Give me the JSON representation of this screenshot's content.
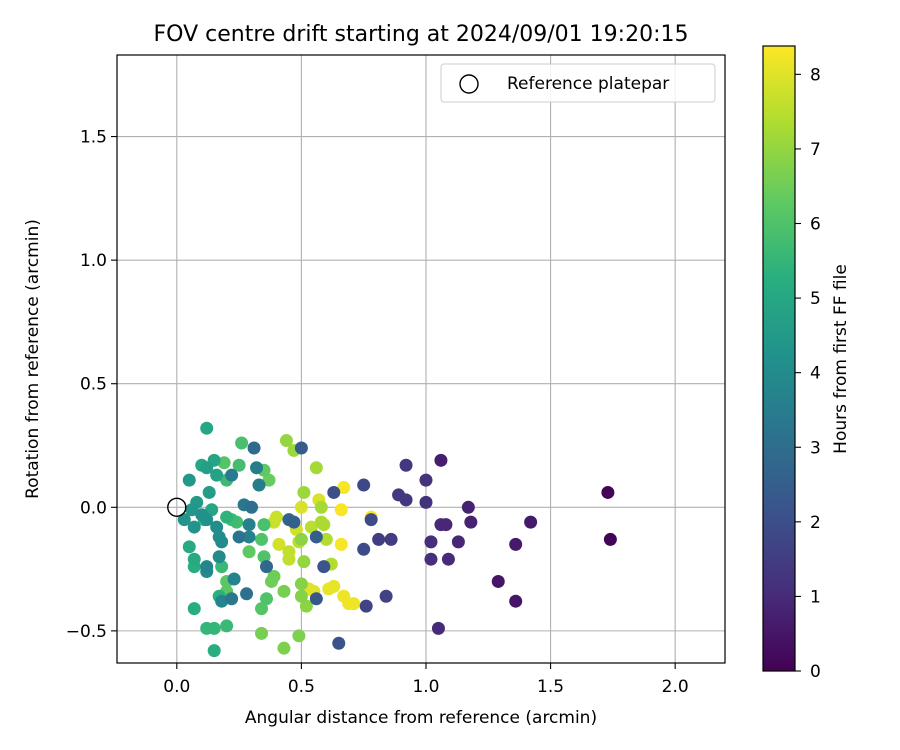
{
  "chart_data": {
    "type": "scatter",
    "title": "FOV centre drift starting at 2024/09/01 19:20:15",
    "xlabel": "Angular distance from reference (arcmin)",
    "ylabel": "Rotation from reference (arcmin)",
    "xlim": [
      -0.24,
      2.2
    ],
    "ylim": [
      -0.63,
      1.83
    ],
    "xticks": [
      0.0,
      0.5,
      1.0,
      1.5,
      2.0
    ],
    "xtick_labels": [
      "0.0",
      "0.5",
      "1.0",
      "1.5",
      "2.0"
    ],
    "yticks": [
      -0.5,
      0.0,
      0.5,
      1.0,
      1.5
    ],
    "ytick_labels": [
      "−0.5",
      "0.0",
      "0.5",
      "1.0",
      "1.5"
    ],
    "grid": true,
    "legend": {
      "position": "top-right",
      "entries": [
        "Reference platepar"
      ]
    },
    "reference_point": {
      "label": "Reference platepar",
      "x": 0.0,
      "y": 0.0,
      "marker": "open-circle"
    },
    "colorbar": {
      "label": "Hours from first FF file",
      "colormap": "viridis",
      "range": [
        0,
        8.38
      ],
      "ticks": [
        0,
        1,
        2,
        3,
        4,
        5,
        6,
        7,
        8
      ],
      "tick_labels": [
        "0",
        "1",
        "2",
        "3",
        "4",
        "5",
        "6",
        "7",
        "8"
      ]
    },
    "points": [
      {
        "x": 1.73,
        "y": 0.06,
        "h": 0.1
      },
      {
        "x": 1.74,
        "y": -0.13,
        "h": 0.1
      },
      {
        "x": 1.29,
        "y": -0.3,
        "h": 0.5
      },
      {
        "x": 1.36,
        "y": -0.38,
        "h": 0.5
      },
      {
        "x": 1.42,
        "y": -0.06,
        "h": 0.6
      },
      {
        "x": 1.36,
        "y": -0.15,
        "h": 0.6
      },
      {
        "x": 1.06,
        "y": 0.19,
        "h": 0.7
      },
      {
        "x": 1.17,
        "y": 0.0,
        "h": 0.8
      },
      {
        "x": 1.18,
        "y": -0.06,
        "h": 0.8
      },
      {
        "x": 1.13,
        "y": -0.14,
        "h": 0.9
      },
      {
        "x": 1.08,
        "y": -0.07,
        "h": 0.9
      },
      {
        "x": 1.06,
        "y": -0.07,
        "h": 1.0
      },
      {
        "x": 1.09,
        "y": -0.21,
        "h": 1.0
      },
      {
        "x": 1.05,
        "y": -0.49,
        "h": 1.0
      },
      {
        "x": 1.02,
        "y": -0.21,
        "h": 1.1
      },
      {
        "x": 1.02,
        "y": -0.14,
        "h": 1.1
      },
      {
        "x": 1.0,
        "y": 0.02,
        "h": 1.2
      },
      {
        "x": 1.0,
        "y": 0.11,
        "h": 1.2
      },
      {
        "x": 0.92,
        "y": 0.17,
        "h": 1.3
      },
      {
        "x": 0.92,
        "y": 0.03,
        "h": 1.3
      },
      {
        "x": 0.89,
        "y": 0.05,
        "h": 1.4
      },
      {
        "x": 0.86,
        "y": -0.13,
        "h": 1.5
      },
      {
        "x": 0.81,
        "y": -0.13,
        "h": 1.5
      },
      {
        "x": 0.84,
        "y": -0.36,
        "h": 1.6
      },
      {
        "x": 0.76,
        "y": -0.4,
        "h": 1.7
      },
      {
        "x": 0.75,
        "y": 0.09,
        "h": 1.8
      },
      {
        "x": 0.75,
        "y": -0.17,
        "h": 1.9
      },
      {
        "x": 0.78,
        "y": -0.05,
        "h": 1.9
      },
      {
        "x": 0.63,
        "y": 0.06,
        "h": 2.0
      },
      {
        "x": 0.65,
        "y": -0.55,
        "h": 2.1
      },
      {
        "x": 0.59,
        "y": -0.24,
        "h": 2.2
      },
      {
        "x": 0.56,
        "y": -0.37,
        "h": 2.3
      },
      {
        "x": 0.5,
        "y": 0.24,
        "h": 2.4
      },
      {
        "x": 0.56,
        "y": -0.12,
        "h": 2.5
      },
      {
        "x": 0.47,
        "y": -0.06,
        "h": 2.6
      },
      {
        "x": 0.45,
        "y": -0.05,
        "h": 2.7
      },
      {
        "x": 0.36,
        "y": -0.24,
        "h": 2.8
      },
      {
        "x": 0.31,
        "y": 0.24,
        "h": 2.9
      },
      {
        "x": 0.3,
        "y": 0.0,
        "h": 3.0
      },
      {
        "x": 0.28,
        "y": -0.35,
        "h": 3.1
      },
      {
        "x": 0.25,
        "y": -0.12,
        "h": 3.2
      },
      {
        "x": 0.22,
        "y": -0.37,
        "h": 3.3
      },
      {
        "x": 0.27,
        "y": 0.01,
        "h": 3.3
      },
      {
        "x": 0.22,
        "y": 0.13,
        "h": 3.4
      },
      {
        "x": 0.32,
        "y": 0.16,
        "h": 3.5
      },
      {
        "x": 0.33,
        "y": 0.09,
        "h": 3.5
      },
      {
        "x": 0.29,
        "y": -0.07,
        "h": 3.6
      },
      {
        "x": 0.29,
        "y": -0.12,
        "h": 3.6
      },
      {
        "x": 0.23,
        "y": -0.29,
        "h": 3.7
      },
      {
        "x": 0.18,
        "y": -0.38,
        "h": 3.8
      },
      {
        "x": 0.12,
        "y": -0.24,
        "h": 3.8
      },
      {
        "x": 0.12,
        "y": -0.26,
        "h": 3.9
      },
      {
        "x": 0.17,
        "y": -0.2,
        "h": 4.0
      },
      {
        "x": 0.18,
        "y": -0.14,
        "h": 4.0
      },
      {
        "x": 0.16,
        "y": -0.08,
        "h": 4.1
      },
      {
        "x": 0.17,
        "y": -0.12,
        "h": 4.1
      },
      {
        "x": 0.1,
        "y": -0.03,
        "h": 4.2
      },
      {
        "x": 0.12,
        "y": -0.05,
        "h": 4.2
      },
      {
        "x": 0.03,
        "y": -0.05,
        "h": 4.3
      },
      {
        "x": 0.07,
        "y": -0.08,
        "h": 4.3
      },
      {
        "x": 0.06,
        "y": -0.01,
        "h": 4.4
      },
      {
        "x": 0.05,
        "y": 0.11,
        "h": 4.4
      },
      {
        "x": 0.08,
        "y": 0.02,
        "h": 4.5
      },
      {
        "x": 0.13,
        "y": 0.06,
        "h": 4.6
      },
      {
        "x": 0.12,
        "y": 0.16,
        "h": 4.7
      },
      {
        "x": 0.16,
        "y": 0.13,
        "h": 4.8
      },
      {
        "x": 0.15,
        "y": 0.19,
        "h": 4.9
      },
      {
        "x": 0.14,
        "y": -0.01,
        "h": 4.9
      },
      {
        "x": 0.12,
        "y": 0.32,
        "h": 5.0
      },
      {
        "x": 0.1,
        "y": 0.17,
        "h": 5.0
      },
      {
        "x": 0.05,
        "y": -0.16,
        "h": 5.1
      },
      {
        "x": 0.07,
        "y": -0.21,
        "h": 5.1
      },
      {
        "x": 0.07,
        "y": -0.24,
        "h": 5.2
      },
      {
        "x": 0.07,
        "y": -0.41,
        "h": 5.2
      },
      {
        "x": 0.15,
        "y": -0.58,
        "h": 5.2
      },
      {
        "x": 0.17,
        "y": -0.36,
        "h": 5.3
      },
      {
        "x": 0.11,
        "y": -0.05,
        "h": 5.3
      },
      {
        "x": 0.2,
        "y": -0.04,
        "h": 5.4
      },
      {
        "x": 0.15,
        "y": -0.49,
        "h": 5.5
      },
      {
        "x": 0.12,
        "y": -0.49,
        "h": 5.5
      },
      {
        "x": 0.2,
        "y": -0.48,
        "h": 5.6
      },
      {
        "x": 0.18,
        "y": -0.24,
        "h": 5.6
      },
      {
        "x": 0.2,
        "y": 0.11,
        "h": 5.7
      },
      {
        "x": 0.22,
        "y": -0.05,
        "h": 5.7
      },
      {
        "x": 0.24,
        "y": -0.06,
        "h": 5.8
      },
      {
        "x": 0.25,
        "y": 0.17,
        "h": 5.8
      },
      {
        "x": 0.26,
        "y": 0.26,
        "h": 5.9
      },
      {
        "x": 0.35,
        "y": -0.07,
        "h": 5.9
      },
      {
        "x": 0.34,
        "y": -0.13,
        "h": 6.0
      },
      {
        "x": 0.35,
        "y": -0.2,
        "h": 6.0
      },
      {
        "x": 0.36,
        "y": -0.37,
        "h": 6.0
      },
      {
        "x": 0.34,
        "y": -0.41,
        "h": 6.1
      },
      {
        "x": 0.19,
        "y": 0.18,
        "h": 6.1
      },
      {
        "x": 0.2,
        "y": -0.3,
        "h": 6.2
      },
      {
        "x": 0.2,
        "y": -0.34,
        "h": 6.2
      },
      {
        "x": 0.29,
        "y": -0.18,
        "h": 6.3
      },
      {
        "x": 0.35,
        "y": 0.15,
        "h": 6.3
      },
      {
        "x": 0.37,
        "y": 0.11,
        "h": 6.4
      },
      {
        "x": 0.33,
        "y": 0.09,
        "h": 6.4
      },
      {
        "x": 0.38,
        "y": -0.3,
        "h": 6.5
      },
      {
        "x": 0.39,
        "y": -0.28,
        "h": 6.5
      },
      {
        "x": 0.43,
        "y": -0.34,
        "h": 6.6
      },
      {
        "x": 0.34,
        "y": -0.51,
        "h": 6.6
      },
      {
        "x": 0.43,
        "y": -0.57,
        "h": 6.7
      },
      {
        "x": 0.49,
        "y": -0.52,
        "h": 6.7
      },
      {
        "x": 0.5,
        "y": -0.31,
        "h": 6.8
      },
      {
        "x": 0.5,
        "y": -0.36,
        "h": 6.8
      },
      {
        "x": 0.52,
        "y": -0.4,
        "h": 6.9
      },
      {
        "x": 0.5,
        "y": -0.13,
        "h": 6.9
      },
      {
        "x": 0.51,
        "y": -0.22,
        "h": 7.0
      },
      {
        "x": 0.44,
        "y": 0.27,
        "h": 7.0
      },
      {
        "x": 0.47,
        "y": 0.23,
        "h": 7.1
      },
      {
        "x": 0.51,
        "y": 0.06,
        "h": 7.1
      },
      {
        "x": 0.56,
        "y": 0.16,
        "h": 7.2
      },
      {
        "x": 0.58,
        "y": 0.0,
        "h": 7.2
      },
      {
        "x": 0.58,
        "y": -0.06,
        "h": 7.3
      },
      {
        "x": 0.59,
        "y": -0.07,
        "h": 7.3
      },
      {
        "x": 0.6,
        "y": -0.13,
        "h": 7.4
      },
      {
        "x": 0.62,
        "y": -0.23,
        "h": 7.4
      },
      {
        "x": 0.54,
        "y": -0.08,
        "h": 7.5
      },
      {
        "x": 0.49,
        "y": -0.14,
        "h": 7.5
      },
      {
        "x": 0.45,
        "y": -0.18,
        "h": 7.6
      },
      {
        "x": 0.45,
        "y": -0.21,
        "h": 7.6
      },
      {
        "x": 0.4,
        "y": -0.04,
        "h": 7.7
      },
      {
        "x": 0.39,
        "y": -0.06,
        "h": 7.7
      },
      {
        "x": 0.41,
        "y": -0.15,
        "h": 7.8
      },
      {
        "x": 0.48,
        "y": -0.09,
        "h": 7.8
      },
      {
        "x": 0.5,
        "y": 0.0,
        "h": 7.9
      },
      {
        "x": 0.57,
        "y": 0.03,
        "h": 7.9
      },
      {
        "x": 0.53,
        "y": -0.33,
        "h": 8.0
      },
      {
        "x": 0.55,
        "y": -0.34,
        "h": 8.0
      },
      {
        "x": 0.61,
        "y": -0.33,
        "h": 8.1
      },
      {
        "x": 0.63,
        "y": -0.32,
        "h": 8.1
      },
      {
        "x": 0.67,
        "y": -0.36,
        "h": 8.2
      },
      {
        "x": 0.69,
        "y": -0.39,
        "h": 8.2
      },
      {
        "x": 0.71,
        "y": -0.39,
        "h": 8.2
      },
      {
        "x": 0.66,
        "y": -0.15,
        "h": 8.3
      },
      {
        "x": 0.66,
        "y": -0.01,
        "h": 8.3
      },
      {
        "x": 0.67,
        "y": 0.08,
        "h": 8.3
      },
      {
        "x": 0.78,
        "y": -0.04,
        "h": 8.4
      }
    ]
  }
}
